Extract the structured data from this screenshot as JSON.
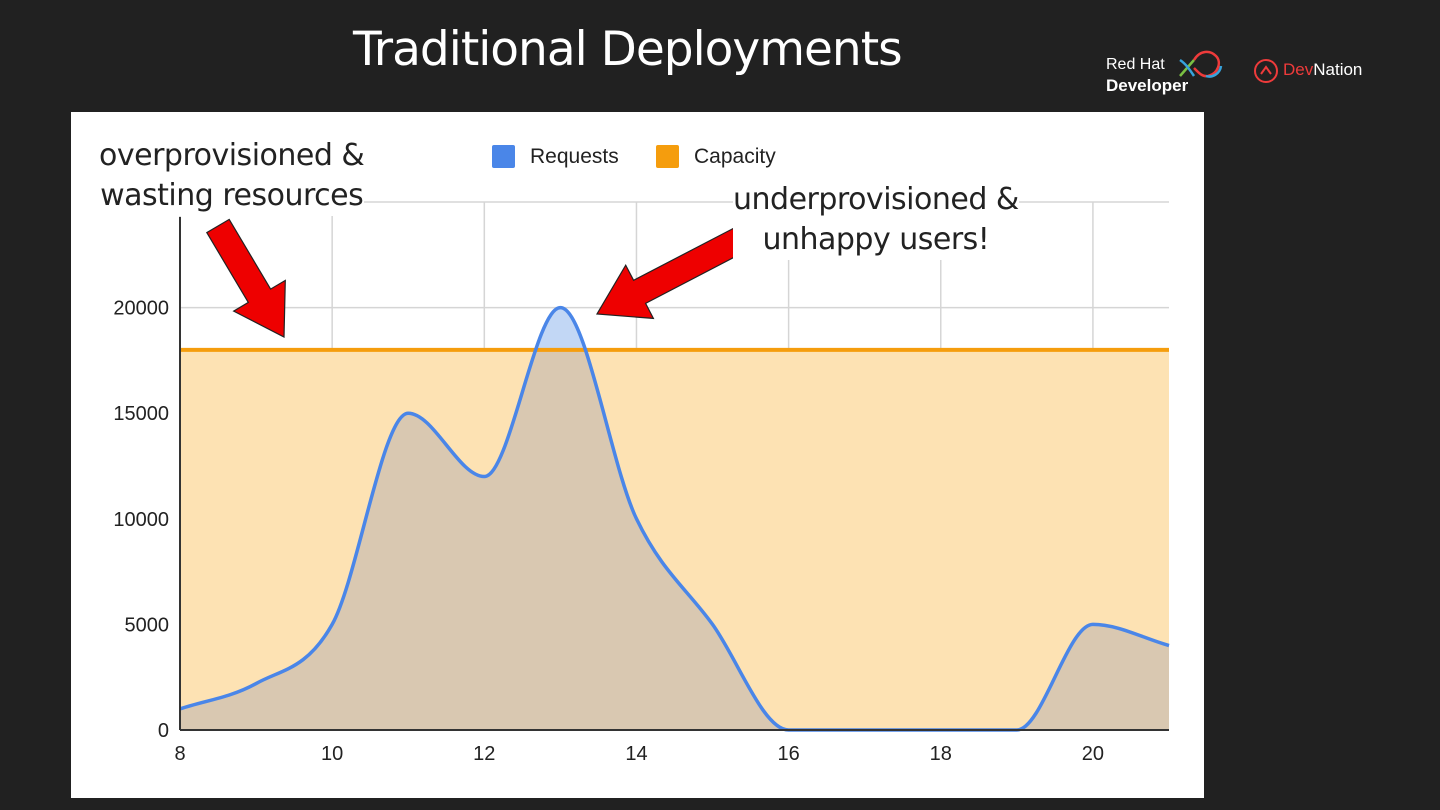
{
  "slide": {
    "title": "Traditional Deployments"
  },
  "logos": {
    "red_hat_line1": "Red Hat",
    "red_hat_line2": "Developer",
    "devnation_dev": "Dev",
    "devnation_nation": "Nation"
  },
  "annotations": {
    "left_line1": "overprovisioned &",
    "left_line2": "wasting resources",
    "right_line1": "underprovisioned &",
    "right_line2": "unhappy users!"
  },
  "colors": {
    "requests": "#4a86e8",
    "capacity": "#f59d0d",
    "capacity_fill": "#fde2b3",
    "requests_fill": "#c2d7f5",
    "overlap_fill": "#d9c8b1",
    "arrow": "#ee0000"
  },
  "chart_data": {
    "type": "area",
    "legend": {
      "placement": "top",
      "entries": [
        "Requests",
        "Capacity"
      ]
    },
    "x_ticks": [
      "8",
      "10",
      "12",
      "14",
      "16",
      "18",
      "20"
    ],
    "y_ticks": [
      "0",
      "5000",
      "10000",
      "15000",
      "20000"
    ],
    "xlim": [
      8,
      21
    ],
    "ylim": [
      0,
      25000
    ],
    "grid": true,
    "series": [
      {
        "name": "Requests",
        "x": [
          8,
          9,
          10,
          11,
          12,
          13,
          14,
          15,
          16,
          17,
          18,
          19,
          20,
          21
        ],
        "values": [
          1000,
          2200,
          5000,
          15000,
          12000,
          20000,
          10000,
          5000,
          0,
          0,
          0,
          0,
          5000,
          4000
        ]
      },
      {
        "name": "Capacity",
        "x": [
          8,
          21
        ],
        "values": [
          18000,
          18000
        ]
      }
    ]
  }
}
